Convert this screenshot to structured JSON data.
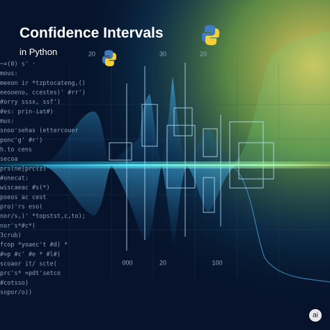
{
  "header": {
    "title": "Confidence Intervals",
    "subtitle": "in Python"
  },
  "axis_labels": {
    "top": [
      "20",
      "30",
      "20"
    ],
    "bottom": [
      "000",
      "20",
      "100"
    ]
  },
  "code_lines": [
    "~=(0)  s'  ·",
    "mous:",
    "meeon ir *tzptocateng,()",
    "eeooeno, ccestes)' #rr')",
    "#orry sssx, ssf')",
    "#es: prin-iat#)",
    "mus:",
    "snoo'sehas (ettercouer",
    "ponc'g' #r')",
    "h.to cens",
    "secoa",
    "prs(ne[prc(z)",
    "#onecat:",
    "wiscaeac #s(*)",
    "poeos ac cest",
    "pro)'rs eso(",
    "nor/s,)' *topstst,c,to);",
    "nor's*#c*(",
    "3crub)",
    "fcop  *yoaec't  #d) *",
    "#=p #c' #e *  #l#)",
    "scoaor it/ scte(",
    "prc's* =pdt'setco",
    "#cotsso)",
    "sopor/o))"
  ],
  "badge": "ai"
}
